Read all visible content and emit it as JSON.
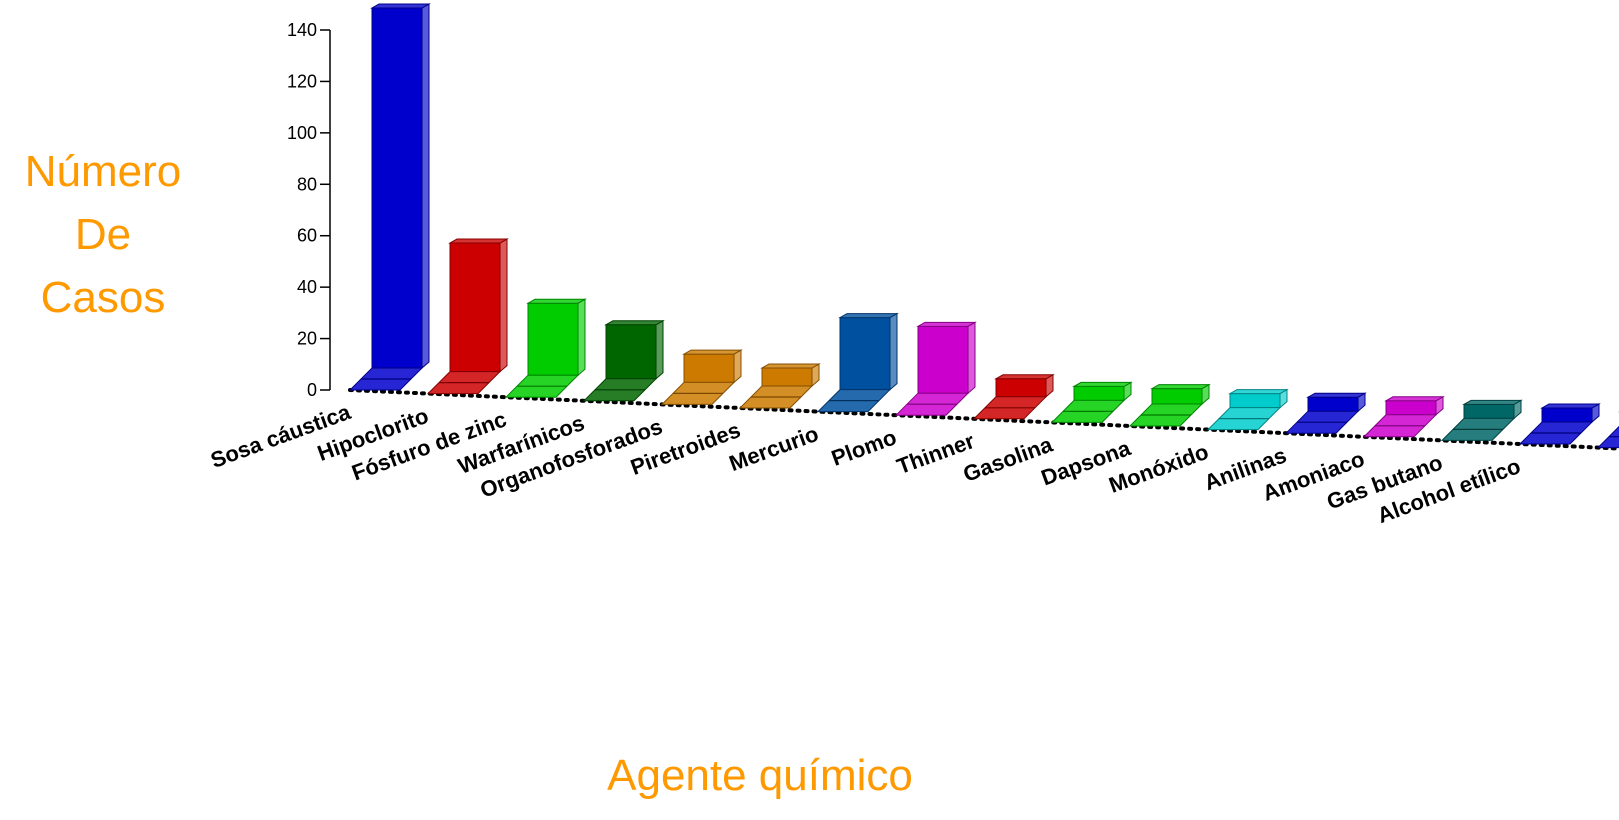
{
  "chart_data": {
    "type": "bar",
    "title": "",
    "ylabel_lines": [
      "Número",
      "De",
      "Casos"
    ],
    "xlabel": "Agente químico",
    "ylim": [
      0,
      140
    ],
    "yticks": [
      0,
      20,
      40,
      60,
      80,
      100,
      120,
      140
    ],
    "categories": [
      "Sosa cáustica",
      "Hipoclorito",
      "Fósfuro de zinc",
      "Warfarínicos",
      "Organofosforados",
      "Piretroides",
      "Mercurio",
      "Plomo",
      "Thinner",
      "Gasolina",
      "Dapsona",
      "Monóxido",
      "Anilinas",
      "Amoniaco",
      "Gas butano",
      "Alcohol etílico",
      ""
    ],
    "values": [
      140,
      50,
      28,
      21,
      11,
      7,
      28,
      26,
      7,
      5,
      6,
      4,
      3,
      3,
      2,
      1,
      1
    ],
    "colors": [
      "#0000cc",
      "#cc0000",
      "#00cc00",
      "#006600",
      "#cc7a00",
      "#cc7a00",
      "#0050a0",
      "#cc00cc",
      "#cc0000",
      "#00cc00",
      "#00cc00",
      "#00cccc",
      "#0000cc",
      "#cc00cc",
      "#006666",
      "#0000cc",
      "#0000cc"
    ],
    "grid": false,
    "legend": "none"
  }
}
